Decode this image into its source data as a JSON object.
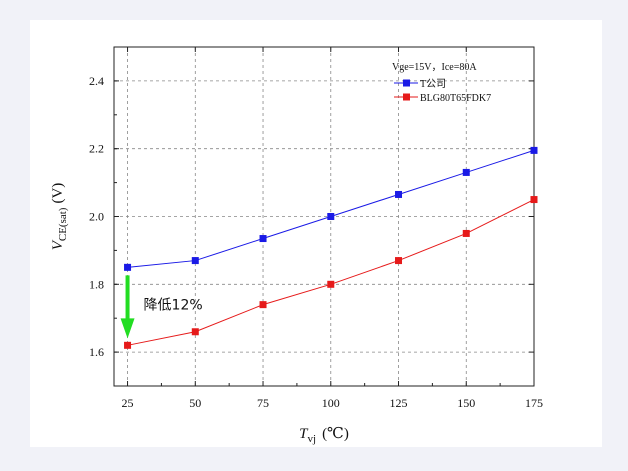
{
  "chart_data": {
    "type": "line",
    "x": [
      25,
      50,
      75,
      100,
      125,
      150,
      175
    ],
    "xlim": [
      20,
      175
    ],
    "ylim": [
      1.5,
      2.5
    ],
    "xticks": [
      "25",
      "50",
      "75",
      "100",
      "125",
      "150",
      "175"
    ],
    "yticks": [
      "1.6",
      "1.8",
      "2.0",
      "2.2",
      "2.4"
    ],
    "grid": true,
    "legend_title": "Vge=15V，Ice=80A",
    "legend_position": "top-right",
    "xlabel": {
      "symbol": "T",
      "sub": "vj",
      "unit": "(℃)"
    },
    "ylabel": {
      "symbol": "V",
      "sub": "CE(sat)",
      "unit": "(V)"
    },
    "series": [
      {
        "name": "T公司",
        "color": "#1a1ae6",
        "values": [
          1.85,
          1.87,
          1.935,
          2.0,
          2.065,
          2.13,
          2.195
        ]
      },
      {
        "name": "BLG80T65FDK7",
        "color": "#e61a1a",
        "values": [
          1.62,
          1.66,
          1.74,
          1.8,
          1.87,
          1.95,
          2.05
        ]
      }
    ],
    "annotation": {
      "text": "降低12%",
      "arrow_color": "#22dd22",
      "x": 25,
      "from": 1.85,
      "to": 1.62
    }
  }
}
